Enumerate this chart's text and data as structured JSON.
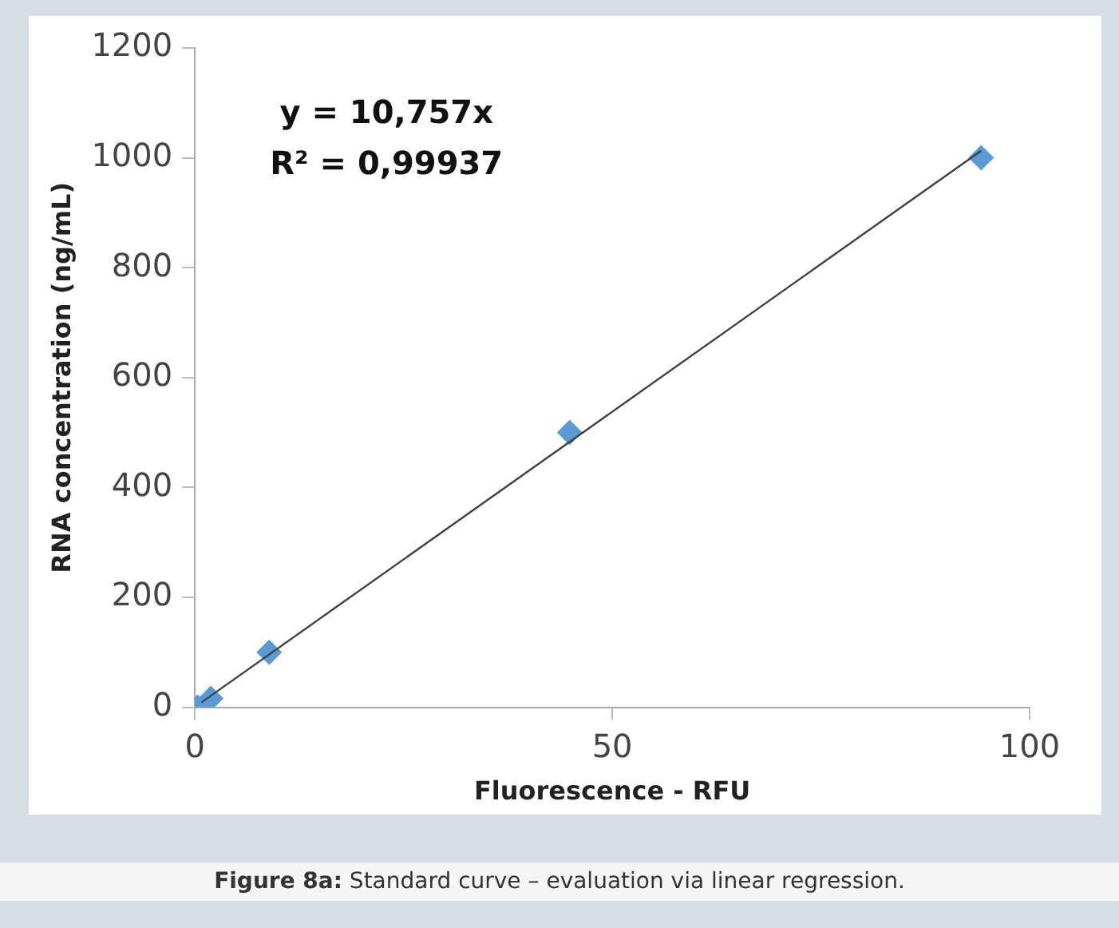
{
  "chart_data": {
    "type": "scatter",
    "xlabel": "Fluorescence - RFU",
    "ylabel": "RNA concentration (ng/mL)",
    "xlim": [
      0,
      100
    ],
    "xticks": [
      0,
      50,
      100
    ],
    "ylim": [
      0,
      1200
    ],
    "yticks": [
      0,
      200,
      400,
      600,
      800,
      1000,
      1200
    ],
    "grid": false,
    "legend": false,
    "marker": "diamond",
    "series": [
      {
        "color": "#5b9bd5",
        "x": [
          0.3,
          1.9,
          8.9,
          44.9,
          94.2
        ],
        "values": [
          0,
          16,
          100,
          500,
          1000
        ]
      },
      {
        "type": "line",
        "color": "#404040",
        "marker": "none",
        "x": [
          0.8,
          94.2
        ],
        "values": [
          9,
          1013
        ]
      }
    ],
    "annotations": [
      {
        "text": "y = 10,757x"
      },
      {
        "text": "R² = 0,99937"
      },
      {
        "text": "Figure 8a: Standard curve – evaluation via linear regression."
      }
    ]
  }
}
